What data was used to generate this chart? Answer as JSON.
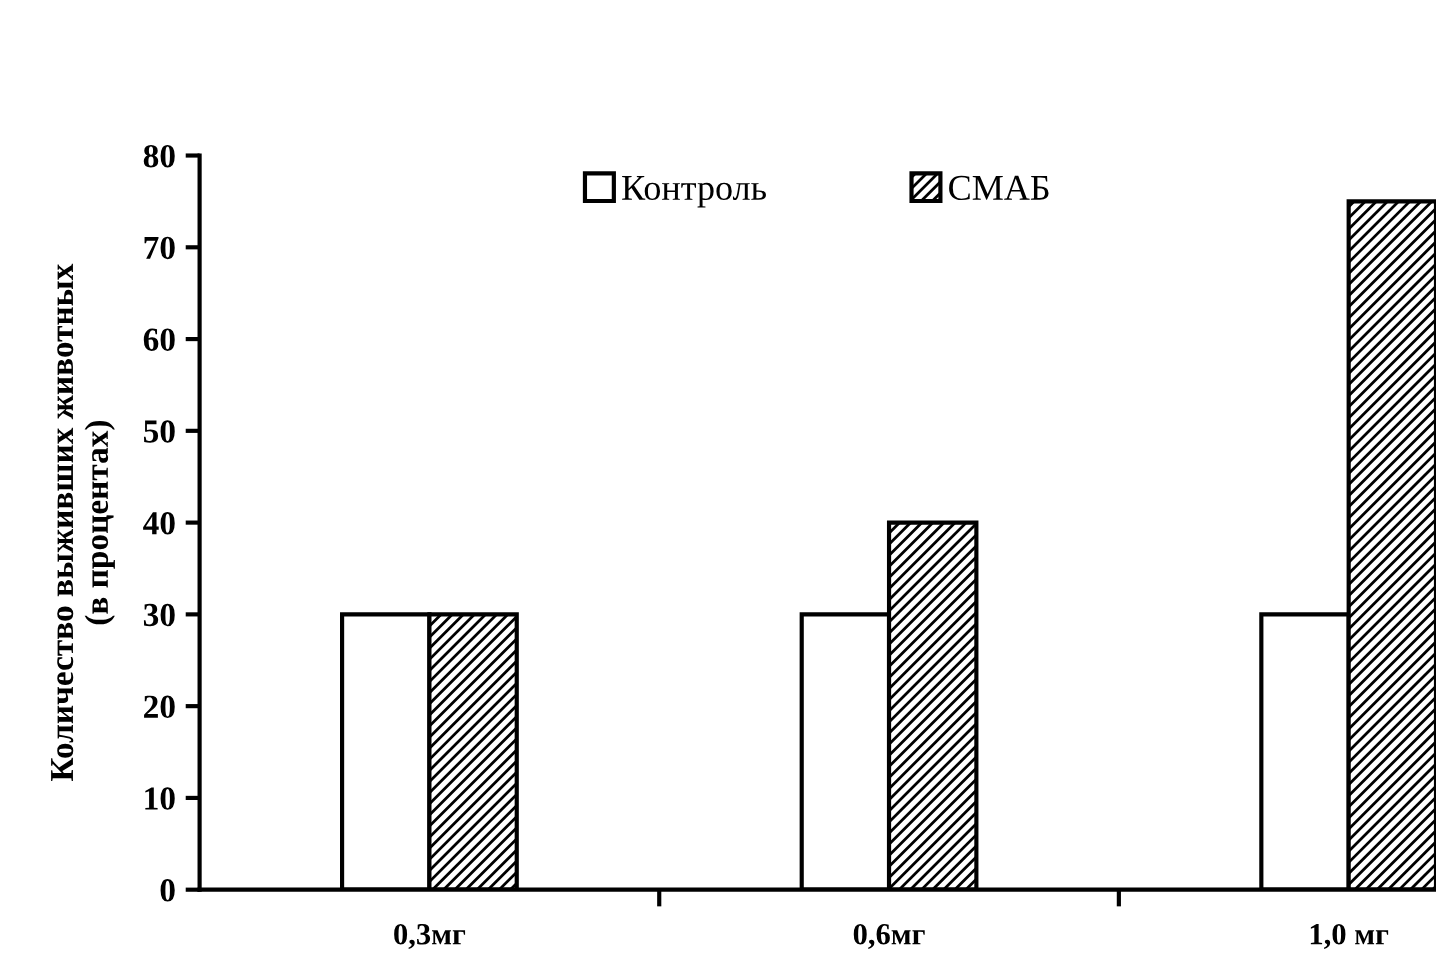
{
  "chart_data": {
    "type": "bar",
    "ylabel": "Количество выживших животных\n(в процентах)",
    "categories": [
      "0,3мг",
      "0,6мг",
      "1,0 мг"
    ],
    "series": [
      {
        "name": "Контроль",
        "color": "#ffffff",
        "values": [
          30,
          30,
          30
        ]
      },
      {
        "name": "СМАБ",
        "color": "#000000",
        "values": [
          30,
          40,
          75
        ]
      }
    ],
    "ylim": [
      0,
      80
    ],
    "yticks": [
      0,
      10,
      20,
      30,
      40,
      50,
      60,
      70,
      80
    ],
    "grid": false,
    "legend": "top"
  }
}
